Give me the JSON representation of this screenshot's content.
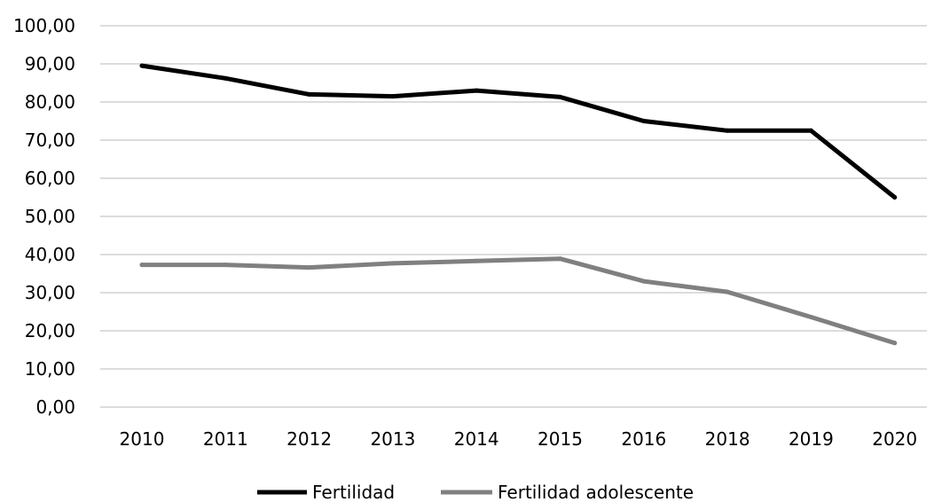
{
  "chart_data": {
    "type": "line",
    "title": "",
    "xlabel": "",
    "ylabel": "",
    "categories": [
      "2010",
      "2011",
      "2012",
      "2013",
      "2014",
      "2015",
      "2016",
      "2018",
      "2019",
      "2020"
    ],
    "yticks": [
      "0,00",
      "10,00",
      "20,00",
      "30,00",
      "40,00",
      "50,00",
      "60,00",
      "70,00",
      "80,00",
      "90,00",
      "100,00"
    ],
    "ylim": [
      0,
      100
    ],
    "grid": true,
    "legend_position": "bottom",
    "series": [
      {
        "name": "Fertilidad",
        "color": "#000000",
        "values": [
          89.5,
          86.2,
          82.0,
          81.5,
          83.0,
          81.3,
          75.0,
          72.5,
          72.5,
          55.0
        ]
      },
      {
        "name": "Fertilidad adolescente",
        "color": "#808080",
        "values": [
          37.3,
          37.3,
          36.6,
          37.7,
          38.3,
          38.9,
          33.0,
          30.2,
          23.6,
          16.8
        ]
      }
    ]
  }
}
